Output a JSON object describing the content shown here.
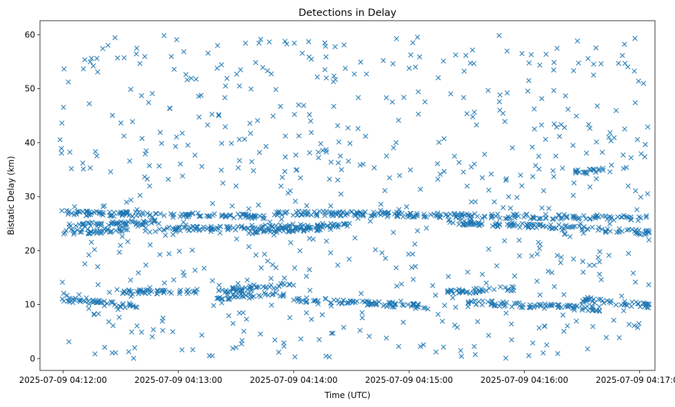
{
  "chart_data": {
    "type": "scatter",
    "title": "Detections in Delay",
    "xlabel": "Time (UTC)",
    "ylabel": "Bistatic Delay (km)",
    "xlim": [
      "2025-07-09 04:11:48",
      "2025-07-09 04:17:08"
    ],
    "ylim": [
      -2.2,
      62.6
    ],
    "x_ticks": [
      {
        "value": "2025-07-09 04:12:00",
        "label": "2025-07-09 04:12:00"
      },
      {
        "value": "2025-07-09 04:13:00",
        "label": "2025-07-09 04:13:00"
      },
      {
        "value": "2025-07-09 04:14:00",
        "label": "2025-07-09 04:14:00"
      },
      {
        "value": "2025-07-09 04:15:00",
        "label": "2025-07-09 04:15:00"
      },
      {
        "value": "2025-07-09 04:16:00",
        "label": "2025-07-09 04:16:00"
      },
      {
        "value": "2025-07-09 04:17:00",
        "label": "2025-07-09 04:17:00"
      }
    ],
    "y_ticks": [
      0,
      10,
      20,
      30,
      40,
      50,
      60
    ],
    "grid": false,
    "marker": "x",
    "color": "#1f77b4",
    "time_range": [
      "2025-07-09 04:11:58",
      "2025-07-09 04:17:05"
    ],
    "tracks": [
      {
        "start": "2025-07-09 04:11:59",
        "end": "2025-07-09 04:13:45",
        "delay_start": 27.0,
        "delay_end": 26.3
      },
      {
        "start": "2025-07-09 04:13:48",
        "end": "2025-07-09 04:17:05",
        "delay_start": 27.0,
        "delay_end": 26.0
      },
      {
        "start": "2025-07-09 04:11:59",
        "end": "2025-07-09 04:12:50",
        "delay_start": 24.6,
        "delay_end": 25.3
      },
      {
        "start": "2025-07-09 04:12:48",
        "end": "2025-07-09 04:14:30",
        "delay_start": 24.0,
        "delay_end": 24.7
      },
      {
        "start": "2025-07-09 04:15:20",
        "end": "2025-07-09 04:16:40",
        "delay_start": 25.3,
        "delay_end": 24.0
      },
      {
        "start": "2025-07-09 04:16:40",
        "end": "2025-07-09 04:17:05",
        "delay_start": 23.8,
        "delay_end": 23.3
      },
      {
        "start": "2025-07-09 04:11:59",
        "end": "2025-07-09 04:12:35",
        "delay_start": 23.4,
        "delay_end": 23.8
      },
      {
        "start": "2025-07-09 04:13:35",
        "end": "2025-07-09 04:14:20",
        "delay_start": 23.5,
        "delay_end": 24.2
      },
      {
        "start": "2025-07-09 04:12:30",
        "end": "2025-07-09 04:13:10",
        "delay_start": 12.3,
        "delay_end": 12.5
      },
      {
        "start": "2025-07-09 04:13:20",
        "end": "2025-07-09 04:14:00",
        "delay_start": 12.5,
        "delay_end": 13.7
      },
      {
        "start": "2025-07-09 04:13:20",
        "end": "2025-07-09 04:13:55",
        "delay_start": 11.3,
        "delay_end": 12.0
      },
      {
        "start": "2025-07-09 04:11:59",
        "end": "2025-07-09 04:12:40",
        "delay_start": 11.0,
        "delay_end": 9.6
      },
      {
        "start": "2025-07-09 04:14:00",
        "end": "2025-07-09 04:15:10",
        "delay_start": 11.0,
        "delay_end": 9.6
      },
      {
        "start": "2025-07-09 04:15:20",
        "end": "2025-07-09 04:15:55",
        "delay_start": 12.3,
        "delay_end": 13.0
      },
      {
        "start": "2025-07-09 04:15:30",
        "end": "2025-07-09 04:16:40",
        "delay_start": 10.4,
        "delay_end": 9.2
      },
      {
        "start": "2025-07-09 04:16:30",
        "end": "2025-07-09 04:17:05",
        "delay_start": 11.0,
        "delay_end": 9.8
      },
      {
        "start": "2025-07-09 04:16:25",
        "end": "2025-07-09 04:16:45",
        "delay_start": 34.5,
        "delay_end": 35.0
      }
    ],
    "scattered_detections": {
      "count": 650,
      "delay_range": [
        0,
        60
      ]
    }
  }
}
